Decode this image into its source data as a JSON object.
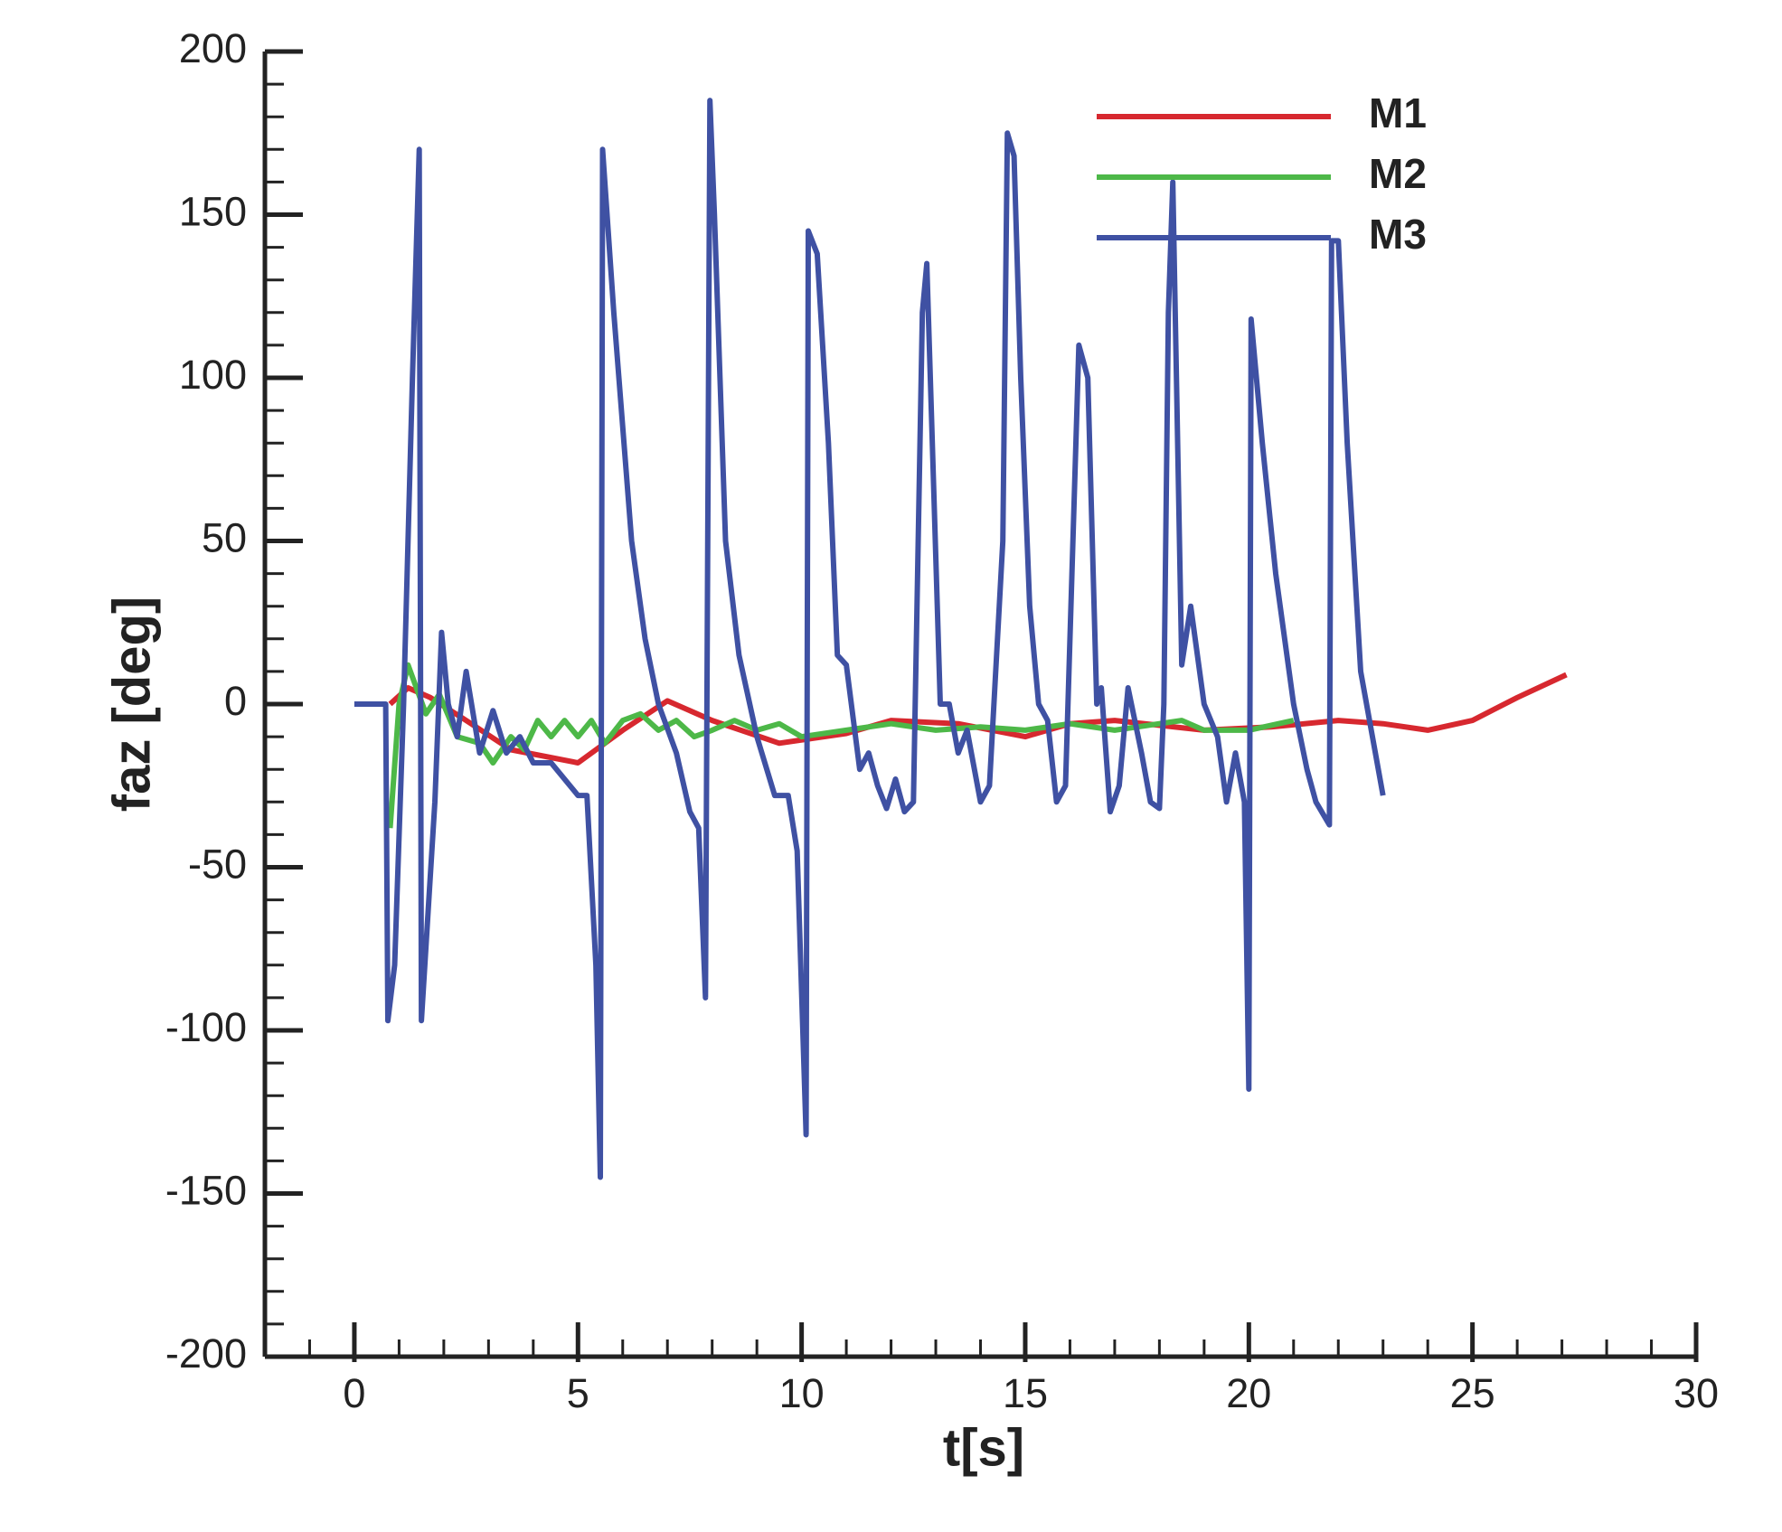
{
  "chart_data": {
    "type": "line",
    "xlabel": "t[s]",
    "ylabel": "faz [deg]",
    "xlim": [
      -2,
      30
    ],
    "ylim": [
      -200,
      200
    ],
    "xticks": [
      0,
      5,
      10,
      15,
      20,
      25,
      30
    ],
    "yticks": [
      -200,
      -150,
      -100,
      -50,
      0,
      50,
      100,
      150,
      200
    ],
    "xminorticks": [
      -1,
      1,
      2,
      3,
      4,
      6,
      7,
      8,
      9,
      11,
      12,
      13,
      14,
      16,
      17,
      18,
      19,
      21,
      22,
      23,
      24,
      26,
      27,
      28,
      29
    ],
    "yminorticks": [
      -190,
      -180,
      -170,
      -160,
      -140,
      -130,
      -120,
      -110,
      -90,
      -80,
      -70,
      -60,
      -40,
      -30,
      -20,
      -10,
      10,
      20,
      30,
      40,
      60,
      70,
      80,
      90,
      110,
      120,
      130,
      140,
      160,
      170,
      180,
      190
    ],
    "legend": "upper right",
    "series": [
      {
        "name": "M1",
        "color": "#d7282f",
        "x": [
          0.8,
          1.2,
          1.7,
          2.5,
          3.5,
          5,
          6,
          7,
          8,
          9.5,
          11,
          12,
          13.5,
          15,
          16,
          17,
          19,
          20.5,
          22,
          23,
          24,
          25,
          26,
          27.1
        ],
        "values": [
          0,
          5,
          2,
          -5,
          -14,
          -18,
          -8,
          1,
          -5,
          -12,
          -9,
          -5,
          -6,
          -10,
          -6,
          -5,
          -8,
          -7,
          -5,
          -6,
          -8,
          -5,
          2,
          9
        ]
      },
      {
        "name": "M2",
        "color": "#4db848",
        "x": [
          0.8,
          1.0,
          1.2,
          1.6,
          1.9,
          2.3,
          2.8,
          3.1,
          3.5,
          3.8,
          4.1,
          4.4,
          4.7,
          5.0,
          5.3,
          5.6,
          6.0,
          6.4,
          6.8,
          7.2,
          7.6,
          8.0,
          8.5,
          9.0,
          9.5,
          10,
          11,
          12,
          13,
          14,
          15,
          16,
          17,
          18,
          18.5,
          19,
          20,
          21
        ],
        "values": [
          -38,
          0,
          12,
          -3,
          3,
          -10,
          -12,
          -18,
          -10,
          -14,
          -5,
          -10,
          -5,
          -10,
          -5,
          -12,
          -5,
          -3,
          -8,
          -5,
          -10,
          -8,
          -5,
          -8,
          -6,
          -10,
          -8,
          -6,
          -8,
          -7,
          -8,
          -6,
          -8,
          -6,
          -5,
          -8,
          -8,
          -5
        ]
      },
      {
        "name": "M3",
        "color": "#3f51a3",
        "x": [
          0,
          0.7,
          0.75,
          0.9,
          1.1,
          1.3,
          1.45,
          1.5,
          1.8,
          1.95,
          2.1,
          2.3,
          2.5,
          2.8,
          3.1,
          3.4,
          3.7,
          4.0,
          4.4,
          5.0,
          5.2,
          5.4,
          5.5,
          5.55,
          5.8,
          6.2,
          6.5,
          6.8,
          7.2,
          7.5,
          7.7,
          7.85,
          7.95,
          8.05,
          8.3,
          8.6,
          9.0,
          9.4,
          9.7,
          9.9,
          10.1,
          10.15,
          10.35,
          10.6,
          10.8,
          11.0,
          11.3,
          11.5,
          11.7,
          11.9,
          12.1,
          12.3,
          12.5,
          12.7,
          12.8,
          12.9,
          13.1,
          13.3,
          13.5,
          13.7,
          14.0,
          14.2,
          14.5,
          14.6,
          14.75,
          14.9,
          15.1,
          15.3,
          15.5,
          15.7,
          15.9,
          16.2,
          16.4,
          16.6,
          16.7,
          16.9,
          17.1,
          17.3,
          17.6,
          17.8,
          18.0,
          18.1,
          18.2,
          18.3,
          18.5,
          18.7,
          19.0,
          19.3,
          19.5,
          19.7,
          19.9,
          20.0,
          20.05,
          20.3,
          20.6,
          21.0,
          21.3,
          21.5,
          21.8,
          21.85,
          22.0,
          22.2,
          22.5,
          23.0
        ],
        "values": [
          0,
          0,
          -97,
          -80,
          0,
          100,
          170,
          -97,
          -30,
          22,
          0,
          -10,
          10,
          -15,
          -2,
          -15,
          -10,
          -18,
          -18,
          -28,
          -28,
          -80,
          -145,
          170,
          120,
          50,
          20,
          0,
          -15,
          -33,
          -38,
          -90,
          185,
          150,
          50,
          15,
          -10,
          -28,
          -28,
          -45,
          -132,
          145,
          138,
          80,
          15,
          12,
          -20,
          -15,
          -25,
          -32,
          -23,
          -33,
          -30,
          120,
          135,
          90,
          0,
          0,
          -15,
          -8,
          -30,
          -25,
          50,
          175,
          168,
          100,
          30,
          0,
          -5,
          -30,
          -25,
          110,
          100,
          0,
          5,
          -33,
          -25,
          5,
          -15,
          -30,
          -32,
          0,
          120,
          160,
          12,
          30,
          0,
          -10,
          -30,
          -15,
          -30,
          -118,
          118,
          80,
          40,
          0,
          -20,
          -30,
          -37,
          142,
          142,
          80,
          10,
          -28
        ]
      }
    ]
  }
}
